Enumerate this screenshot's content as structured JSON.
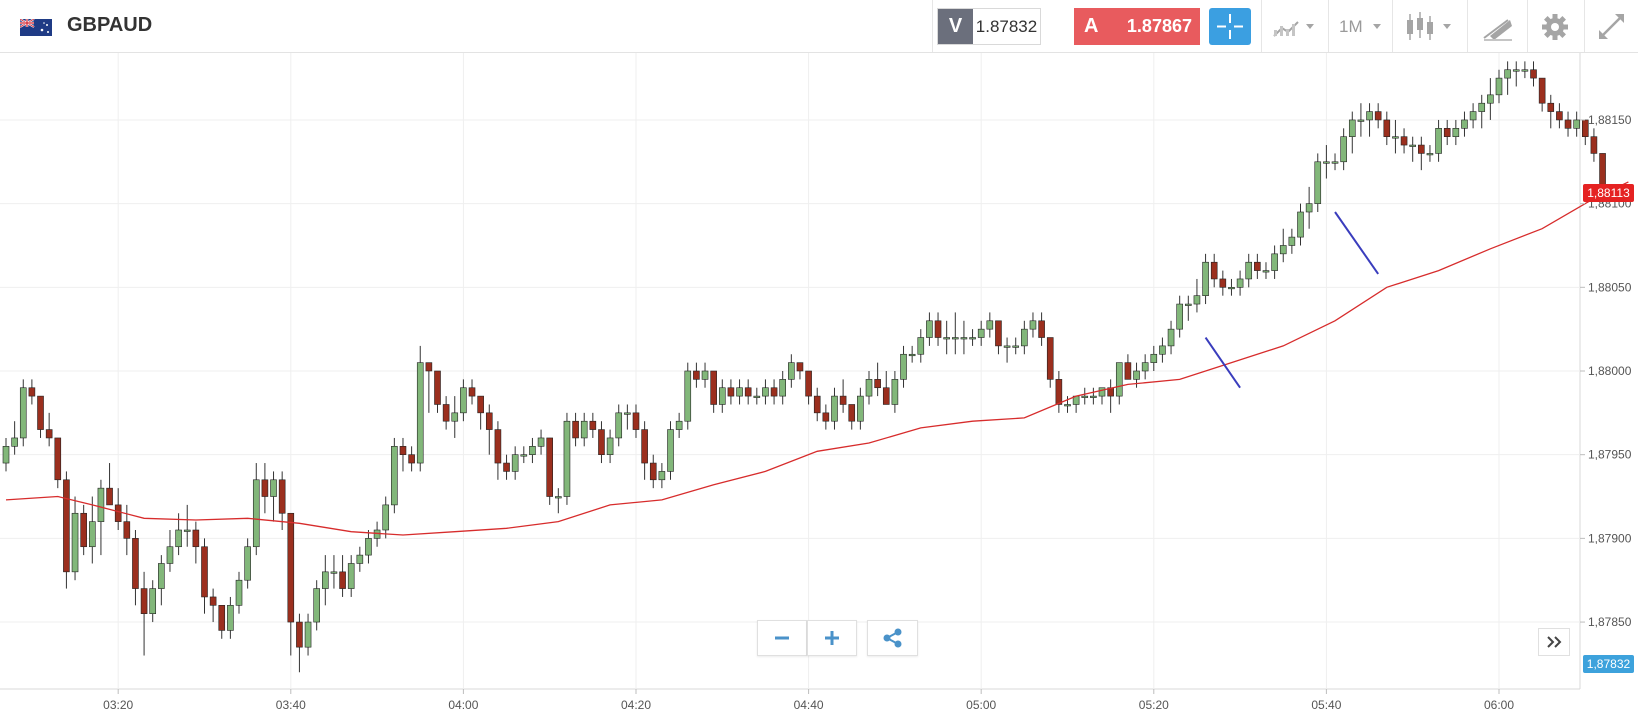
{
  "header": {
    "symbol": "GBPAUD",
    "flag_icon": "gb-au-flag-icon",
    "bid_label": "V",
    "bid_value": "1.87832",
    "ask_label": "A",
    "ask_value": "1.87867",
    "timeframe": "1M",
    "colors": {
      "ask": "#e85b5e",
      "bid_label_bg": "#6b6f7c",
      "crosshair": "#3b9fe1"
    }
  },
  "chart_data": {
    "type": "candlestick",
    "symbol": "GBPAUD",
    "timeframe": "1M",
    "x_tick_labels": [
      "03:20",
      "03:40",
      "04:00",
      "04:20",
      "04:40",
      "05:00",
      "05:20",
      "05:40",
      "06:00"
    ],
    "y_tick_labels": [
      "1,88150",
      "1,88100",
      "1,88050",
      "1,88000",
      "1,87950",
      "1,87900",
      "1,87850"
    ],
    "ylim": [
      1.8781,
      1.8819
    ],
    "last_price_tag": "1,88113",
    "bid_price_tag": "1,87832",
    "grid": true,
    "colors": {
      "up": "#82b77a",
      "down": "#9b2f1e",
      "ma": "#d72c2c",
      "trendline": "#3a3dbd",
      "last_price": "#e52222",
      "bid": "#3da2dc"
    },
    "first_time": "03:07",
    "candles": [
      [
        1.87945,
        1.8796,
        1.8794,
        1.87955
      ],
      [
        1.87955,
        1.8797,
        1.8795,
        1.8796
      ],
      [
        1.8796,
        1.87995,
        1.87955,
        1.8799
      ],
      [
        1.8799,
        1.87995,
        1.8798,
        1.87985
      ],
      [
        1.87985,
        1.87985,
        1.8796,
        1.87965
      ],
      [
        1.87965,
        1.87975,
        1.87955,
        1.8796
      ],
      [
        1.8796,
        1.8796,
        1.8793,
        1.87935
      ],
      [
        1.87935,
        1.8794,
        1.8787,
        1.8788
      ],
      [
        1.8788,
        1.87925,
        1.87875,
        1.87915
      ],
      [
        1.87915,
        1.8792,
        1.8789,
        1.87895
      ],
      [
        1.87895,
        1.87925,
        1.87885,
        1.8791
      ],
      [
        1.8791,
        1.87935,
        1.8789,
        1.8793
      ],
      [
        1.8793,
        1.87945,
        1.8792,
        1.8792
      ],
      [
        1.8792,
        1.8793,
        1.87905,
        1.8791
      ],
      [
        1.8791,
        1.8792,
        1.8789,
        1.879
      ],
      [
        1.879,
        1.87905,
        1.8786,
        1.8787
      ],
      [
        1.8787,
        1.8788,
        1.8783,
        1.87855
      ],
      [
        1.87855,
        1.87875,
        1.8785,
        1.8787
      ],
      [
        1.8787,
        1.8789,
        1.8786,
        1.87885
      ],
      [
        1.87885,
        1.87905,
        1.8788,
        1.87895
      ],
      [
        1.87895,
        1.87915,
        1.8789,
        1.87905
      ],
      [
        1.87905,
        1.8792,
        1.87895,
        1.87905
      ],
      [
        1.87905,
        1.8791,
        1.87885,
        1.87895
      ],
      [
        1.87895,
        1.879,
        1.87855,
        1.87865
      ],
      [
        1.87865,
        1.8787,
        1.8785,
        1.8786
      ],
      [
        1.8786,
        1.8786,
        1.8784,
        1.87845
      ],
      [
        1.87845,
        1.87865,
        1.8784,
        1.8786
      ],
      [
        1.8786,
        1.8788,
        1.87855,
        1.87875
      ],
      [
        1.87875,
        1.879,
        1.8787,
        1.87895
      ],
      [
        1.87895,
        1.87945,
        1.8789,
        1.87935
      ],
      [
        1.87935,
        1.87945,
        1.87915,
        1.87925
      ],
      [
        1.87925,
        1.8794,
        1.8791,
        1.87935
      ],
      [
        1.87935,
        1.8794,
        1.87905,
        1.87915
      ],
      [
        1.87915,
        1.87915,
        1.8783,
        1.8785
      ],
      [
        1.8785,
        1.87855,
        1.8782,
        1.87835
      ],
      [
        1.87835,
        1.87855,
        1.8783,
        1.8785
      ],
      [
        1.8785,
        1.87875,
        1.87845,
        1.8787
      ],
      [
        1.8787,
        1.8789,
        1.8786,
        1.8788
      ],
      [
        1.8788,
        1.8789,
        1.8787,
        1.8788
      ],
      [
        1.8788,
        1.8789,
        1.87865,
        1.8787
      ],
      [
        1.8787,
        1.8789,
        1.87865,
        1.87885
      ],
      [
        1.87885,
        1.87895,
        1.8788,
        1.8789
      ],
      [
        1.8789,
        1.87905,
        1.87885,
        1.879
      ],
      [
        1.879,
        1.8791,
        1.87895,
        1.87905
      ],
      [
        1.87905,
        1.87925,
        1.879,
        1.8792
      ],
      [
        1.8792,
        1.8796,
        1.87915,
        1.87955
      ],
      [
        1.87955,
        1.8796,
        1.8794,
        1.8795
      ],
      [
        1.8795,
        1.87955,
        1.8794,
        1.87945
      ],
      [
        1.87945,
        1.88015,
        1.8794,
        1.88005
      ],
      [
        1.88005,
        1.88005,
        1.87975,
        1.88
      ],
      [
        1.88,
        1.88,
        1.87975,
        1.8798
      ],
      [
        1.8798,
        1.87985,
        1.87965,
        1.8797
      ],
      [
        1.8797,
        1.87985,
        1.8796,
        1.87975
      ],
      [
        1.87975,
        1.87995,
        1.8797,
        1.8799
      ],
      [
        1.8799,
        1.87995,
        1.8798,
        1.87985
      ],
      [
        1.87985,
        1.87985,
        1.87965,
        1.87975
      ],
      [
        1.87975,
        1.8798,
        1.8795,
        1.87965
      ],
      [
        1.87965,
        1.8797,
        1.87935,
        1.87945
      ],
      [
        1.87945,
        1.8795,
        1.87935,
        1.8794
      ],
      [
        1.8794,
        1.87955,
        1.87935,
        1.8795
      ],
      [
        1.8795,
        1.87955,
        1.87945,
        1.8795
      ],
      [
        1.8795,
        1.8796,
        1.87945,
        1.87955
      ],
      [
        1.87955,
        1.87965,
        1.8795,
        1.8796
      ],
      [
        1.8796,
        1.8796,
        1.8792,
        1.87925
      ],
      [
        1.87925,
        1.8793,
        1.87915,
        1.87925
      ],
      [
        1.87925,
        1.87975,
        1.8792,
        1.8797
      ],
      [
        1.8797,
        1.87975,
        1.87955,
        1.8796
      ],
      [
        1.8796,
        1.87975,
        1.87955,
        1.8797
      ],
      [
        1.8797,
        1.87975,
        1.8796,
        1.87965
      ],
      [
        1.87965,
        1.8797,
        1.87945,
        1.8795
      ],
      [
        1.8795,
        1.87965,
        1.87945,
        1.8796
      ],
      [
        1.8796,
        1.8798,
        1.87955,
        1.87975
      ],
      [
        1.87975,
        1.8798,
        1.87965,
        1.87975
      ],
      [
        1.87975,
        1.8798,
        1.8796,
        1.87965
      ],
      [
        1.87965,
        1.8797,
        1.87935,
        1.87945
      ],
      [
        1.87945,
        1.8795,
        1.8793,
        1.87935
      ],
      [
        1.87935,
        1.87945,
        1.8793,
        1.8794
      ],
      [
        1.8794,
        1.8797,
        1.87935,
        1.87965
      ],
      [
        1.87965,
        1.87975,
        1.8796,
        1.8797
      ],
      [
        1.8797,
        1.88005,
        1.87965,
        1.88
      ],
      [
        1.88,
        1.88005,
        1.8799,
        1.87995
      ],
      [
        1.87995,
        1.88005,
        1.8799,
        1.88
      ],
      [
        1.88,
        1.88,
        1.87975,
        1.8798
      ],
      [
        1.8798,
        1.87995,
        1.87975,
        1.8799
      ],
      [
        1.8799,
        1.87995,
        1.8798,
        1.87985
      ],
      [
        1.87985,
        1.87995,
        1.8798,
        1.8799
      ],
      [
        1.8799,
        1.87995,
        1.8798,
        1.87985
      ],
      [
        1.87985,
        1.8799,
        1.8798,
        1.87985
      ],
      [
        1.87985,
        1.87995,
        1.8798,
        1.8799
      ],
      [
        1.8799,
        1.87995,
        1.8798,
        1.87985
      ],
      [
        1.87985,
        1.88,
        1.8798,
        1.87995
      ],
      [
        1.87995,
        1.8801,
        1.8799,
        1.88005
      ],
      [
        1.88005,
        1.88005,
        1.87995,
        1.88
      ],
      [
        1.88,
        1.88,
        1.8798,
        1.87985
      ],
      [
        1.87985,
        1.8799,
        1.8797,
        1.87975
      ],
      [
        1.87975,
        1.8798,
        1.87965,
        1.8797
      ],
      [
        1.8797,
        1.8799,
        1.87965,
        1.87985
      ],
      [
        1.87985,
        1.87995,
        1.87975,
        1.8798
      ],
      [
        1.8798,
        1.8798,
        1.87965,
        1.8797
      ],
      [
        1.8797,
        1.8799,
        1.87965,
        1.87985
      ],
      [
        1.87985,
        1.88,
        1.8798,
        1.87995
      ],
      [
        1.87995,
        1.88005,
        1.87985,
        1.8799
      ],
      [
        1.8799,
        1.88,
        1.8798,
        1.8798
      ],
      [
        1.8798,
        1.88,
        1.87975,
        1.87995
      ],
      [
        1.87995,
        1.88015,
        1.8799,
        1.8801
      ],
      [
        1.8801,
        1.88015,
        1.88005,
        1.8801
      ],
      [
        1.8801,
        1.88025,
        1.88005,
        1.8802
      ],
      [
        1.8802,
        1.88035,
        1.88015,
        1.8803
      ],
      [
        1.8803,
        1.88035,
        1.88015,
        1.8802
      ],
      [
        1.8802,
        1.8803,
        1.8801,
        1.8802
      ],
      [
        1.8802,
        1.88035,
        1.8801,
        1.8802
      ],
      [
        1.8802,
        1.8803,
        1.8801,
        1.8802
      ],
      [
        1.8802,
        1.88025,
        1.88015,
        1.8802
      ],
      [
        1.8802,
        1.8803,
        1.88015,
        1.88025
      ],
      [
        1.88025,
        1.88035,
        1.8802,
        1.8803
      ],
      [
        1.8803,
        1.8803,
        1.8801,
        1.88015
      ],
      [
        1.88015,
        1.8802,
        1.88005,
        1.88015
      ],
      [
        1.88015,
        1.8802,
        1.8801,
        1.88015
      ],
      [
        1.88015,
        1.8803,
        1.8801,
        1.88025
      ],
      [
        1.88025,
        1.88035,
        1.8802,
        1.8803
      ],
      [
        1.8803,
        1.88035,
        1.88015,
        1.8802
      ],
      [
        1.8802,
        1.8802,
        1.8799,
        1.87995
      ],
      [
        1.87995,
        1.88,
        1.87975,
        1.8798
      ],
      [
        1.8798,
        1.87985,
        1.87975,
        1.8798
      ],
      [
        1.8798,
        1.87985,
        1.87975,
        1.87985
      ],
      [
        1.87985,
        1.8799,
        1.8798,
        1.87985
      ],
      [
        1.87985,
        1.8799,
        1.8798,
        1.87985
      ],
      [
        1.87985,
        1.8799,
        1.8798,
        1.8799
      ],
      [
        1.8799,
        1.87995,
        1.87975,
        1.87985
      ],
      [
        1.87985,
        1.88005,
        1.8798,
        1.88005
      ],
      [
        1.88005,
        1.8801,
        1.87995,
        1.87995
      ],
      [
        1.87995,
        1.88005,
        1.8799,
        1.88
      ],
      [
        1.88,
        1.8801,
        1.87995,
        1.88005
      ],
      [
        1.88005,
        1.88015,
        1.88,
        1.8801
      ],
      [
        1.8801,
        1.8802,
        1.88005,
        1.88015
      ],
      [
        1.88015,
        1.8803,
        1.8801,
        1.88025
      ],
      [
        1.88025,
        1.88045,
        1.8802,
        1.8804
      ],
      [
        1.8804,
        1.88045,
        1.8803,
        1.8804
      ],
      [
        1.8804,
        1.88055,
        1.88035,
        1.88045
      ],
      [
        1.88045,
        1.8807,
        1.8804,
        1.88065
      ],
      [
        1.88065,
        1.8807,
        1.8805,
        1.88055
      ],
      [
        1.88055,
        1.8806,
        1.88045,
        1.8805
      ],
      [
        1.8805,
        1.88055,
        1.88045,
        1.8805
      ],
      [
        1.8805,
        1.8806,
        1.88045,
        1.88055
      ],
      [
        1.88055,
        1.8807,
        1.8805,
        1.88065
      ],
      [
        1.88065,
        1.8807,
        1.88055,
        1.8806
      ],
      [
        1.8806,
        1.88065,
        1.88055,
        1.8806
      ],
      [
        1.8806,
        1.88075,
        1.88055,
        1.8807
      ],
      [
        1.8807,
        1.88085,
        1.88065,
        1.88075
      ],
      [
        1.88075,
        1.88085,
        1.8807,
        1.8808
      ],
      [
        1.8808,
        1.881,
        1.88075,
        1.88095
      ],
      [
        1.88095,
        1.8811,
        1.88085,
        1.881
      ],
      [
        1.881,
        1.8813,
        1.88095,
        1.88125
      ],
      [
        1.88125,
        1.88135,
        1.88115,
        1.88125
      ],
      [
        1.88125,
        1.8813,
        1.8812,
        1.88125
      ],
      [
        1.88125,
        1.88145,
        1.8812,
        1.8814
      ],
      [
        1.8814,
        1.88155,
        1.8813,
        1.8815
      ],
      [
        1.8815,
        1.8816,
        1.8814,
        1.8815
      ],
      [
        1.8815,
        1.8816,
        1.8814,
        1.88155
      ],
      [
        1.88155,
        1.8816,
        1.88145,
        1.8815
      ],
      [
        1.8815,
        1.88155,
        1.88135,
        1.8814
      ],
      [
        1.8814,
        1.8815,
        1.8813,
        1.8814
      ],
      [
        1.8814,
        1.88145,
        1.8813,
        1.88135
      ],
      [
        1.88135,
        1.8814,
        1.88125,
        1.88135
      ],
      [
        1.88135,
        1.8814,
        1.8812,
        1.8813
      ],
      [
        1.8813,
        1.88135,
        1.88125,
        1.8813
      ],
      [
        1.8813,
        1.8815,
        1.88125,
        1.88145
      ],
      [
        1.88145,
        1.8815,
        1.88135,
        1.8814
      ],
      [
        1.8814,
        1.8815,
        1.88135,
        1.88145
      ],
      [
        1.88145,
        1.88155,
        1.8814,
        1.8815
      ],
      [
        1.8815,
        1.8816,
        1.88145,
        1.88155
      ],
      [
        1.88155,
        1.88165,
        1.88145,
        1.8816
      ],
      [
        1.8816,
        1.88175,
        1.8815,
        1.88165
      ],
      [
        1.88165,
        1.8818,
        1.8816,
        1.88175
      ],
      [
        1.88175,
        1.88185,
        1.88165,
        1.8818
      ],
      [
        1.8818,
        1.88185,
        1.8817,
        1.8818
      ],
      [
        1.8818,
        1.88185,
        1.88175,
        1.8818
      ],
      [
        1.8818,
        1.88185,
        1.8817,
        1.88175
      ],
      [
        1.88175,
        1.88175,
        1.88155,
        1.8816
      ],
      [
        1.8816,
        1.88165,
        1.88145,
        1.88155
      ],
      [
        1.88155,
        1.8816,
        1.88145,
        1.8815
      ],
      [
        1.8815,
        1.88155,
        1.8814,
        1.88145
      ],
      [
        1.88145,
        1.88155,
        1.8814,
        1.8815
      ],
      [
        1.8815,
        1.8815,
        1.88135,
        1.8814
      ],
      [
        1.8814,
        1.88145,
        1.88125,
        1.8813
      ],
      [
        1.8813,
        1.8813,
        1.881,
        1.8811
      ]
    ],
    "ma_series": [
      [
        0,
        1.87923
      ],
      [
        6,
        1.87925
      ],
      [
        10,
        1.8792
      ],
      [
        16,
        1.87912
      ],
      [
        22,
        1.87911
      ],
      [
        28,
        1.87912
      ],
      [
        34,
        1.87909
      ],
      [
        40,
        1.87904
      ],
      [
        46,
        1.87902
      ],
      [
        52,
        1.87904
      ],
      [
        58,
        1.87906
      ],
      [
        64,
        1.8791
      ],
      [
        70,
        1.8792
      ],
      [
        76,
        1.87923
      ],
      [
        82,
        1.87932
      ],
      [
        88,
        1.8794
      ],
      [
        94,
        1.87952
      ],
      [
        100,
        1.87957
      ],
      [
        106,
        1.87966
      ],
      [
        112,
        1.8797
      ],
      [
        118,
        1.87972
      ],
      [
        124,
        1.87985
      ],
      [
        130,
        1.87992
      ],
      [
        136,
        1.87995
      ],
      [
        142,
        1.88005
      ],
      [
        148,
        1.88015
      ],
      [
        154,
        1.8803
      ],
      [
        160,
        1.8805
      ],
      [
        166,
        1.8806
      ],
      [
        172,
        1.88073
      ],
      [
        178,
        1.88085
      ],
      [
        184,
        1.88103
      ],
      [
        188,
        1.88113
      ]
    ],
    "trendlines": [
      {
        "from": [
          "05:26",
          1.8802
        ],
        "to": [
          "05:30",
          1.8799
        ]
      },
      {
        "from": [
          "05:41",
          1.88095
        ],
        "to": [
          "05:46",
          1.88058
        ]
      }
    ]
  }
}
